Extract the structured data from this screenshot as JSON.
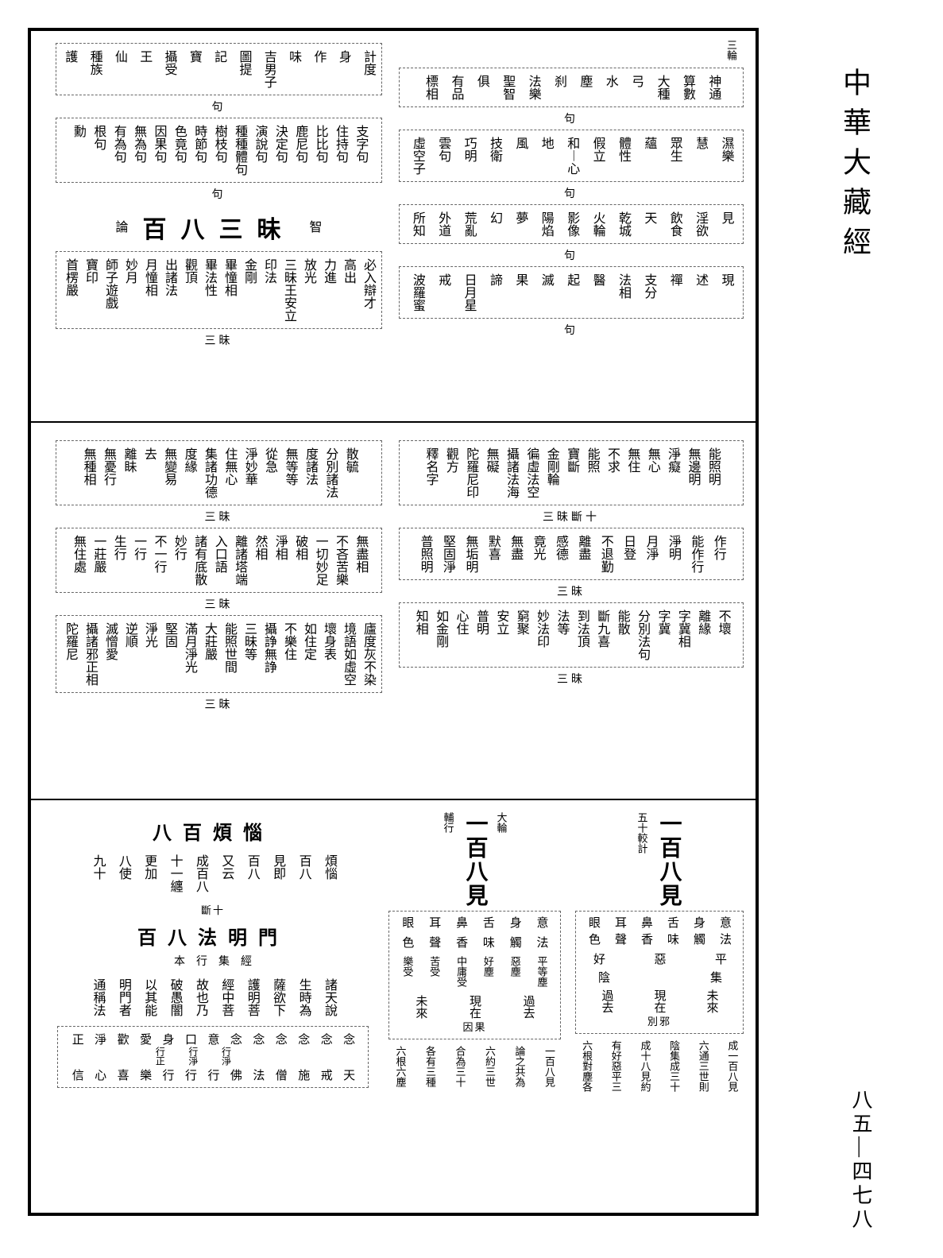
{
  "margin": {
    "title": "中華大藏經",
    "page": "八五—四七八"
  },
  "section1": {
    "left": {
      "row1": {
        "label": "句",
        "cells": [
          "護",
          "種族",
          "仙",
          "王",
          "攝受",
          "寶",
          "記",
          "圖提",
          "吉男子",
          "味",
          "作",
          "身",
          "計度"
        ]
      },
      "row2": {
        "label": "句",
        "cells": [
          "勳",
          "根句",
          "有為句",
          "無為句",
          "因果句",
          "色竟句",
          "時節句",
          "樹枝句",
          "種種體句",
          "演說句",
          "決定句",
          "鹿尼句",
          "比比句",
          "住持句",
          "支字句"
        ]
      },
      "heading_pre": "智",
      "heading": "百八三昧",
      "heading_post": "論",
      "row3": {
        "label": "三昧",
        "cells": [
          "首楞嚴",
          "寶印",
          "師子遊戲",
          "妙月",
          "月憧相",
          "出諸法",
          "觀頂",
          "畢法性",
          "畢憧相",
          "金剛",
          "印法",
          "三昧王安立",
          "放光",
          "力進",
          "高出",
          "必入辯才"
        ]
      }
    },
    "right": {
      "corner": "三輪",
      "row1": {
        "label": "句",
        "cells": [
          "標相",
          "有品",
          "俱",
          "聖智",
          "法樂",
          "刹",
          "塵",
          "水",
          "弓",
          "大種",
          "算數",
          "神通"
        ]
      },
      "row2": {
        "label": "句",
        "cells": [
          "虛空子",
          "雲句",
          "巧明",
          "技衛",
          "風",
          "地",
          "和︱心",
          "假立",
          "體性",
          "蘊",
          "眾生",
          "慧",
          "濕樂"
        ]
      },
      "row3": {
        "label": "句",
        "cells": [
          "所知",
          "外道",
          "荒亂",
          "幻",
          "夢",
          "陽焰",
          "影像",
          "火輪",
          "乾城",
          "天",
          "飲食",
          "淫欲",
          "見"
        ]
      },
      "row4": {
        "label": "句",
        "cells": [
          "波羅蜜",
          "戒",
          "日月星",
          "諦",
          "果",
          "滅",
          "起",
          "醫",
          "法相",
          "支分",
          "禪",
          "述",
          "現"
        ]
      }
    }
  },
  "section2": {
    "left": {
      "row1": {
        "label": "三昧",
        "cells": [
          "無種相",
          "無憂行",
          "離眛",
          "去",
          "無變易",
          "度緣",
          "集諸功德",
          "住無心",
          "淨妙華",
          "從急",
          "無等等",
          "度諸法",
          "分別諸法",
          "散毓"
        ]
      },
      "row2": {
        "label": "三昧",
        "cells": [
          "無住處",
          "一莊嚴",
          "生行",
          "一行",
          "不一行",
          "妙行",
          "諸有底散",
          "入口語",
          "離諸塔端",
          "然相",
          "淨相",
          "破相",
          "一切妙足",
          "不吝苦樂",
          "無盡相"
        ]
      },
      "row3": {
        "label": "三昧",
        "cells": [
          "陀羅尼",
          "攝諸邪正相",
          "滅憎愛",
          "逆順",
          "淨光",
          "堅固",
          "滿月淨光",
          "大莊嚴",
          "能照世間",
          "三昧等",
          "攝諍無諍",
          "不樂住",
          "如住定",
          "壞身表",
          "境語如虛空",
          "廬度灰不染"
        ]
      }
    },
    "right": {
      "row1": {
        "label": "三昧斷十",
        "cells": [
          "釋名字",
          "觀方",
          "陀羅尼印",
          "無礙",
          "攝諸法海",
          "徧虛法空",
          "金剛輪",
          "寶斷",
          "能照",
          "不求",
          "無住",
          "無心",
          "淨癡",
          "無邊明",
          "能照明"
        ]
      },
      "row2": {
        "label": "三昧",
        "cells": [
          "普照明",
          "堅固淨",
          "無垢明",
          "默喜",
          "無盡",
          "竟光",
          "感德",
          "離盡",
          "不退勤",
          "日登",
          "月淨",
          "淨明",
          "能作行",
          "作行"
        ]
      },
      "row3": {
        "label": "三昧",
        "cells": [
          "知相",
          "如金剛",
          "心住",
          "普明",
          "安立",
          "窮聚",
          "妙法印",
          "法等",
          "到法頂",
          "斷九喜",
          "能散",
          "分別法句",
          "字冀",
          "字冀相",
          "離緣",
          "不壞"
        ]
      }
    }
  },
  "section3": {
    "left": {
      "heading1": "八百煩惱",
      "row1": [
        "九十",
        "八使",
        "更加",
        "十一纏",
        "成百八",
        "又云",
        "百八",
        "見即",
        "百八",
        "煩惱"
      ],
      "marker": "斷十",
      "heading2": "百八法明門",
      "sub2": [
        "本",
        "行",
        "集",
        "經"
      ],
      "row2": [
        "通稱法",
        "明門者",
        "以其能",
        "破愚闇",
        "故也乃",
        "經中菩",
        "護明菩",
        "薩欲下",
        "生時為",
        "諸天說"
      ],
      "box": {
        "top": [
          "正",
          "淨",
          "歡",
          "愛",
          "身",
          "口",
          "意",
          "念",
          "念",
          "念",
          "念",
          "念",
          "念"
        ],
        "mid": [
          "",
          "",
          "",
          "",
          "行正",
          "行淨",
          "行淨",
          "",
          "",
          "",
          "",
          "",
          ""
        ],
        "bot": [
          "信",
          "心",
          "喜",
          "樂",
          "行",
          "行",
          "行",
          "佛",
          "法",
          "僧",
          "施",
          "戒",
          "天"
        ]
      }
    },
    "mid": {
      "title_small": "大輪",
      "title_big": "一百八見",
      "title_tail": "輔行",
      "senses": [
        "眼",
        "耳",
        "鼻",
        "舌",
        "身",
        "意"
      ],
      "dusts": [
        "色",
        "聲",
        "香",
        "味",
        "觸",
        "法"
      ],
      "feelings": [
        "樂受",
        "苦受",
        "中庸受",
        "好塵",
        "惡塵",
        "平等塵"
      ],
      "times": [
        "未來",
        "現在",
        "過去"
      ],
      "time_label": "因果",
      "notes": [
        "六根六塵",
        "各有三種",
        "合為三十",
        "六約三世",
        "論之共為",
        "一百八見"
      ]
    },
    "right": {
      "title_small": "五十較計",
      "title_big": "一百八見",
      "senses": [
        "眼",
        "耳",
        "鼻",
        "舌",
        "身",
        "意"
      ],
      "dusts": [
        "色",
        "聲",
        "香",
        "味",
        "觸",
        "法"
      ],
      "grade": [
        "好",
        "惡",
        "平"
      ],
      "split": [
        "陰",
        "集"
      ],
      "times": [
        "過去",
        "現在",
        "未來"
      ],
      "time_label": "別邪",
      "notes": [
        "六根對塵各",
        "有好惡平三",
        "成十八見約",
        "陰集成三十",
        "六通三世則",
        "成一百八見"
      ]
    }
  }
}
